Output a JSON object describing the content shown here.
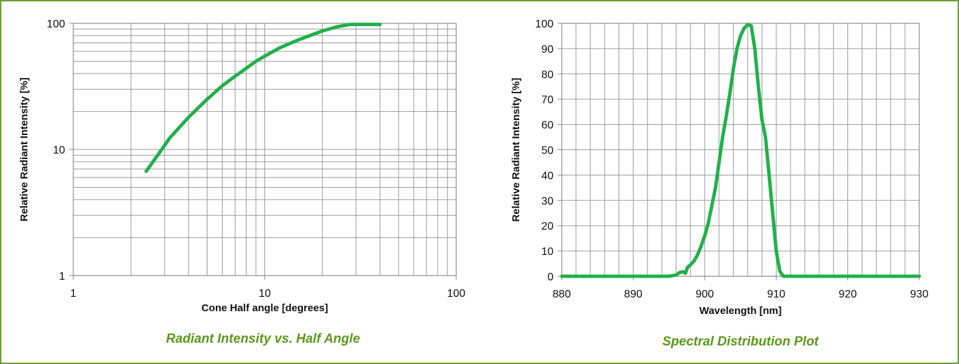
{
  "chart_data": [
    {
      "type": "line",
      "xscale": "log",
      "yscale": "log",
      "xlim": [
        1,
        100
      ],
      "ylim": [
        1,
        100
      ],
      "xticks": [
        "1",
        "10",
        "100"
      ],
      "yticks": [
        "1",
        "10",
        "100"
      ],
      "xlabel": "Cone Half angle [degrees]",
      "ylabel": "Relative Radiant Intensity [%]",
      "caption": "Radiant Intensity vs. Half Angle",
      "grid": true,
      "line_color": "#22b04b",
      "series": [
        {
          "x": [
            2.4,
            2.8,
            3.2,
            4,
            5,
            6,
            7,
            8,
            9,
            10,
            12,
            15,
            18,
            20,
            24,
            28,
            32,
            40
          ],
          "y": [
            6.7,
            9.3,
            12.4,
            18,
            25,
            32,
            38,
            44,
            50,
            55,
            64,
            74,
            82,
            87,
            94,
            98,
            98,
            98
          ]
        }
      ]
    },
    {
      "type": "line",
      "xscale": "linear",
      "yscale": "linear",
      "xlim": [
        880,
        930
      ],
      "ylim": [
        0,
        100
      ],
      "xticks": [
        "880",
        "890",
        "900",
        "910",
        "920",
        "930"
      ],
      "yticks": [
        "0",
        "10",
        "20",
        "30",
        "40",
        "50",
        "60",
        "70",
        "80",
        "90",
        "100"
      ],
      "xlabel": "Wavelength [nm]",
      "ylabel": "Relative Radiant Intensity [%]",
      "caption": "Spectral Distribution Plot",
      "grid": true,
      "line_color": "#22b04b",
      "series": [
        {
          "x": [
            880,
            895,
            896,
            896.5,
            897,
            897.3,
            897.6,
            898,
            898.5,
            899,
            899.5,
            900,
            900.5,
            901,
            901.5,
            902,
            902.5,
            903,
            903.5,
            904,
            904.5,
            905,
            905.5,
            906,
            906.5,
            907,
            907.5,
            908,
            908.5,
            909,
            909.5,
            910,
            910.5,
            911,
            920,
            930
          ],
          "y": [
            0,
            0,
            0.5,
            1.5,
            1.8,
            1.2,
            3.5,
            4.5,
            6,
            8.5,
            12,
            16,
            21,
            28,
            35,
            45,
            55,
            63,
            72,
            82,
            90,
            95,
            98,
            99.5,
            99,
            90,
            75,
            62,
            55,
            40,
            25,
            10,
            2,
            0,
            0,
            0
          ]
        }
      ]
    }
  ]
}
